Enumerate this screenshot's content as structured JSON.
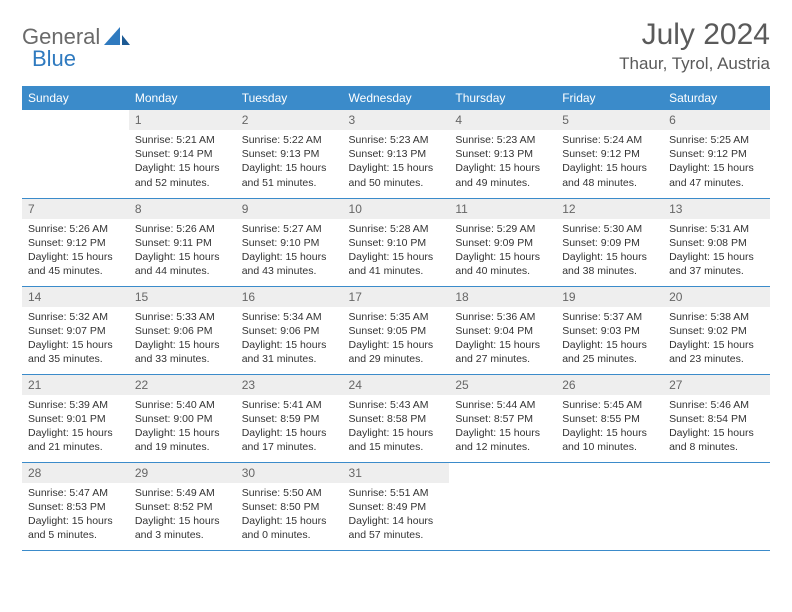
{
  "logo": {
    "text1": "General",
    "text2": "Blue"
  },
  "title": "July 2024",
  "location": "Thaur, Tyrol, Austria",
  "colors": {
    "header_bg": "#3b8bca",
    "header_text": "#ffffff",
    "daynum_bg": "#eeeeee",
    "daynum_text": "#666666",
    "body_text": "#333333",
    "border": "#3b8bca",
    "logo_gray": "#6a6a6a",
    "logo_blue": "#2f7abf",
    "title_color": "#5a5a5a"
  },
  "day_headers": [
    "Sunday",
    "Monday",
    "Tuesday",
    "Wednesday",
    "Thursday",
    "Friday",
    "Saturday"
  ],
  "weeks": [
    [
      {
        "empty": true
      },
      {
        "n": "1",
        "sunrise": "5:21 AM",
        "sunset": "9:14 PM",
        "daylight": "15 hours and 52 minutes."
      },
      {
        "n": "2",
        "sunrise": "5:22 AM",
        "sunset": "9:13 PM",
        "daylight": "15 hours and 51 minutes."
      },
      {
        "n": "3",
        "sunrise": "5:23 AM",
        "sunset": "9:13 PM",
        "daylight": "15 hours and 50 minutes."
      },
      {
        "n": "4",
        "sunrise": "5:23 AM",
        "sunset": "9:13 PM",
        "daylight": "15 hours and 49 minutes."
      },
      {
        "n": "5",
        "sunrise": "5:24 AM",
        "sunset": "9:12 PM",
        "daylight": "15 hours and 48 minutes."
      },
      {
        "n": "6",
        "sunrise": "5:25 AM",
        "sunset": "9:12 PM",
        "daylight": "15 hours and 47 minutes."
      }
    ],
    [
      {
        "n": "7",
        "sunrise": "5:26 AM",
        "sunset": "9:12 PM",
        "daylight": "15 hours and 45 minutes."
      },
      {
        "n": "8",
        "sunrise": "5:26 AM",
        "sunset": "9:11 PM",
        "daylight": "15 hours and 44 minutes."
      },
      {
        "n": "9",
        "sunrise": "5:27 AM",
        "sunset": "9:10 PM",
        "daylight": "15 hours and 43 minutes."
      },
      {
        "n": "10",
        "sunrise": "5:28 AM",
        "sunset": "9:10 PM",
        "daylight": "15 hours and 41 minutes."
      },
      {
        "n": "11",
        "sunrise": "5:29 AM",
        "sunset": "9:09 PM",
        "daylight": "15 hours and 40 minutes."
      },
      {
        "n": "12",
        "sunrise": "5:30 AM",
        "sunset": "9:09 PM",
        "daylight": "15 hours and 38 minutes."
      },
      {
        "n": "13",
        "sunrise": "5:31 AM",
        "sunset": "9:08 PM",
        "daylight": "15 hours and 37 minutes."
      }
    ],
    [
      {
        "n": "14",
        "sunrise": "5:32 AM",
        "sunset": "9:07 PM",
        "daylight": "15 hours and 35 minutes."
      },
      {
        "n": "15",
        "sunrise": "5:33 AM",
        "sunset": "9:06 PM",
        "daylight": "15 hours and 33 minutes."
      },
      {
        "n": "16",
        "sunrise": "5:34 AM",
        "sunset": "9:06 PM",
        "daylight": "15 hours and 31 minutes."
      },
      {
        "n": "17",
        "sunrise": "5:35 AM",
        "sunset": "9:05 PM",
        "daylight": "15 hours and 29 minutes."
      },
      {
        "n": "18",
        "sunrise": "5:36 AM",
        "sunset": "9:04 PM",
        "daylight": "15 hours and 27 minutes."
      },
      {
        "n": "19",
        "sunrise": "5:37 AM",
        "sunset": "9:03 PM",
        "daylight": "15 hours and 25 minutes."
      },
      {
        "n": "20",
        "sunrise": "5:38 AM",
        "sunset": "9:02 PM",
        "daylight": "15 hours and 23 minutes."
      }
    ],
    [
      {
        "n": "21",
        "sunrise": "5:39 AM",
        "sunset": "9:01 PM",
        "daylight": "15 hours and 21 minutes."
      },
      {
        "n": "22",
        "sunrise": "5:40 AM",
        "sunset": "9:00 PM",
        "daylight": "15 hours and 19 minutes."
      },
      {
        "n": "23",
        "sunrise": "5:41 AM",
        "sunset": "8:59 PM",
        "daylight": "15 hours and 17 minutes."
      },
      {
        "n": "24",
        "sunrise": "5:43 AM",
        "sunset": "8:58 PM",
        "daylight": "15 hours and 15 minutes."
      },
      {
        "n": "25",
        "sunrise": "5:44 AM",
        "sunset": "8:57 PM",
        "daylight": "15 hours and 12 minutes."
      },
      {
        "n": "26",
        "sunrise": "5:45 AM",
        "sunset": "8:55 PM",
        "daylight": "15 hours and 10 minutes."
      },
      {
        "n": "27",
        "sunrise": "5:46 AM",
        "sunset": "8:54 PM",
        "daylight": "15 hours and 8 minutes."
      }
    ],
    [
      {
        "n": "28",
        "sunrise": "5:47 AM",
        "sunset": "8:53 PM",
        "daylight": "15 hours and 5 minutes."
      },
      {
        "n": "29",
        "sunrise": "5:49 AM",
        "sunset": "8:52 PM",
        "daylight": "15 hours and 3 minutes."
      },
      {
        "n": "30",
        "sunrise": "5:50 AM",
        "sunset": "8:50 PM",
        "daylight": "15 hours and 0 minutes."
      },
      {
        "n": "31",
        "sunrise": "5:51 AM",
        "sunset": "8:49 PM",
        "daylight": "14 hours and 57 minutes."
      },
      {
        "empty": true
      },
      {
        "empty": true
      },
      {
        "empty": true
      }
    ]
  ],
  "labels": {
    "sunrise": "Sunrise:",
    "sunset": "Sunset:",
    "daylight": "Daylight:"
  }
}
